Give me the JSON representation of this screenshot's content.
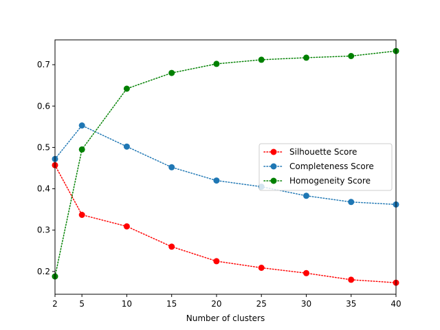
{
  "chart_data": {
    "type": "line",
    "title": "",
    "xlabel": "Number of clusters",
    "ylabel": "",
    "x": [
      2,
      5,
      10,
      15,
      20,
      25,
      30,
      35,
      40
    ],
    "xlim": [
      2,
      40
    ],
    "ylim": [
      0.145,
      0.76
    ],
    "xticks": [
      "2",
      "5",
      "10",
      "15",
      "20",
      "25",
      "30",
      "35",
      "40"
    ],
    "yticks": [
      "0.2",
      "0.3",
      "0.4",
      "0.5",
      "0.6",
      "0.7"
    ],
    "grid": false,
    "legend_position": "center-right",
    "series": [
      {
        "name": "Silhouette Score",
        "color": "#ff0000",
        "line_style": "dotted",
        "marker": "circle",
        "values": [
          0.457,
          0.337,
          0.309,
          0.26,
          0.225,
          0.209,
          0.196,
          0.18,
          0.173
        ]
      },
      {
        "name": "Completeness Score",
        "color": "#1f77b4",
        "line_style": "dotted",
        "marker": "circle",
        "values": [
          0.472,
          0.553,
          0.502,
          0.452,
          0.42,
          0.405,
          0.383,
          0.368,
          0.362
        ]
      },
      {
        "name": "Homogeneity Score",
        "color": "#008000",
        "line_style": "dotted",
        "marker": "circle",
        "values": [
          0.188,
          0.495,
          0.642,
          0.68,
          0.702,
          0.712,
          0.717,
          0.721,
          0.733
        ]
      }
    ]
  }
}
